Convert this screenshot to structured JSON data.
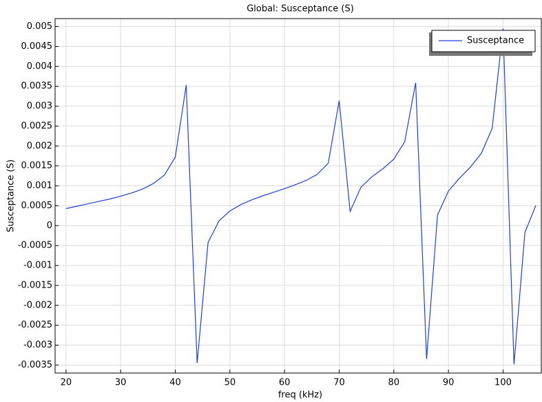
{
  "chart_data": {
    "type": "line",
    "title": "Global: Susceptance (S)",
    "x_label": "freq (kHz)",
    "y_label": "Susceptance (S)",
    "x": [
      20,
      22,
      24,
      26,
      28,
      30,
      32,
      34,
      36,
      38,
      40,
      42,
      44,
      46,
      48,
      50,
      52,
      54,
      56,
      58,
      60,
      62,
      64,
      66,
      68,
      70,
      72,
      74,
      76,
      78,
      80,
      82,
      84,
      86,
      88,
      90,
      92,
      94,
      96,
      98,
      100,
      102,
      104,
      106
    ],
    "series": [
      {
        "name": "Susceptance",
        "color": "#1f3fd6",
        "values": [
          0.00043,
          0.00049,
          0.00055,
          0.00061,
          0.00067,
          0.00074,
          0.00082,
          0.00092,
          0.00106,
          0.00127,
          0.00172,
          0.00353,
          -0.00345,
          -0.00042,
          0.00012,
          0.00037,
          0.00053,
          0.00065,
          0.00075,
          0.00084,
          0.00093,
          0.00103,
          0.00114,
          0.00129,
          0.00157,
          0.00314,
          0.00036,
          0.00097,
          0.00123,
          0.00143,
          0.00167,
          0.00211,
          0.00359,
          -0.00335,
          0.00027,
          0.00087,
          0.00119,
          0.00147,
          0.00181,
          0.00244,
          0.00495,
          -0.00348,
          -0.00017,
          0.00051
        ]
      }
    ],
    "xlim": [
      18,
      107
    ],
    "xticks": [
      20,
      30,
      40,
      50,
      60,
      70,
      80,
      90,
      100
    ],
    "ylim": [
      -0.0037,
      0.0052
    ],
    "yticks": [
      0.005,
      0.0045,
      0.004,
      0.0035,
      0.003,
      0.0025,
      0.002,
      0.0015,
      0.001,
      0.0005,
      0,
      -0.0005,
      -0.001,
      -0.0015,
      -0.002,
      -0.0025,
      -0.003,
      -0.0035
    ],
    "grid": true,
    "legend": "upper right"
  }
}
